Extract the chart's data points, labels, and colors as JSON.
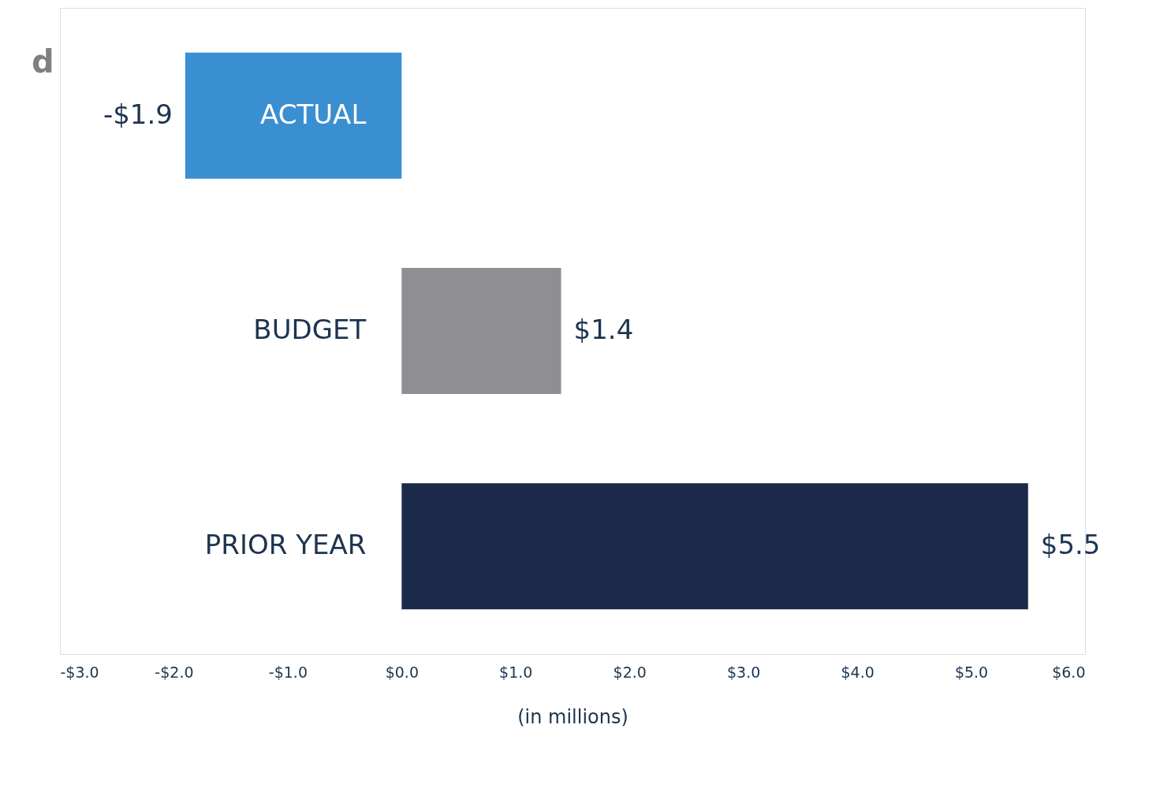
{
  "chart_data": {
    "type": "bar",
    "orientation": "horizontal",
    "xlabel": "(in millions)",
    "categories": [
      "ACTUAL",
      "BUDGET",
      "PRIOR YEAR"
    ],
    "values": [
      -1.9,
      1.4,
      5.5
    ],
    "colors": [
      "#3a8fd1",
      "#8e8e93",
      "#1c2a4a"
    ],
    "value_labels": [
      "-$1.9",
      "$1.4",
      "$5.5"
    ],
    "xlim": [
      -3,
      6
    ],
    "xticks": [
      {
        "value": -3,
        "label": "-$3.0"
      },
      {
        "value": -2,
        "label": "-$2.0"
      },
      {
        "value": -1,
        "label": "-$1.0"
      },
      {
        "value": 0,
        "label": "$0.0"
      },
      {
        "value": 1,
        "label": "$1.0"
      },
      {
        "value": 2,
        "label": "$2.0"
      },
      {
        "value": 3,
        "label": "$3.0"
      },
      {
        "value": 4,
        "label": "$4.0"
      },
      {
        "value": 5,
        "label": "$5.0"
      },
      {
        "value": 6,
        "label": "$6.0"
      }
    ],
    "annotations": [
      "d"
    ],
    "grid": false,
    "legend": false
  }
}
